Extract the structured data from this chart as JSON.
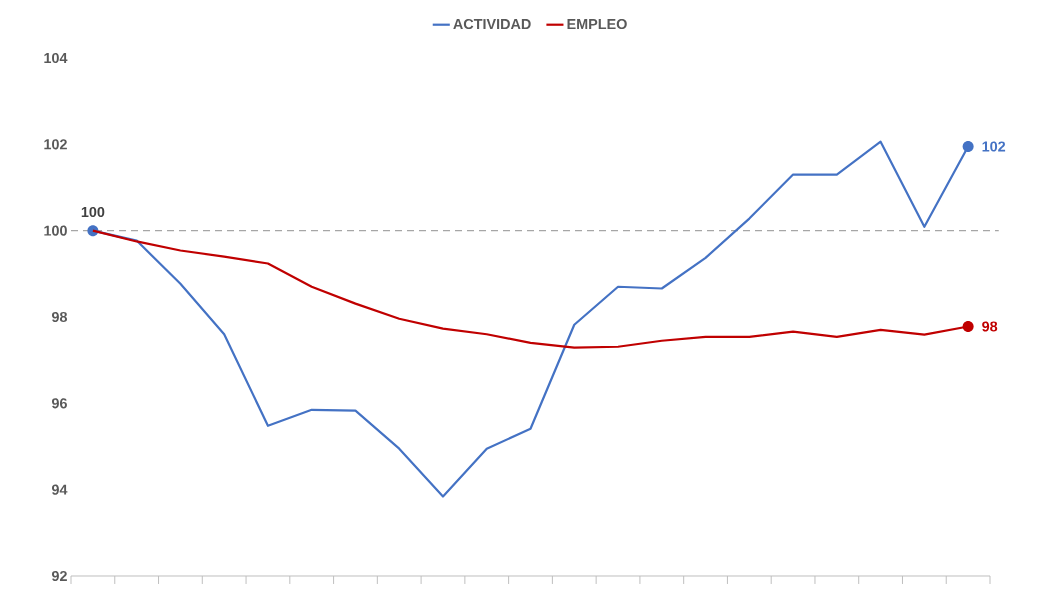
{
  "chart_data": {
    "type": "line",
    "categories": [
      null,
      null,
      null,
      null,
      null,
      null,
      null,
      null,
      null,
      null,
      null,
      null,
      null,
      null,
      null,
      null,
      null,
      null,
      null,
      null,
      null
    ],
    "series": [
      {
        "name": "ACTIVIDAD",
        "color": "#4472c4",
        "values": [
          100,
          99.77,
          98.77,
          97.6,
          95.48,
          95.85,
          95.83,
          94.95,
          93.84,
          94.95,
          95.41,
          97.82,
          98.7,
          98.66,
          99.37,
          100.28,
          101.3,
          101.3,
          102.06,
          100.09,
          101.95
        ],
        "value_labels": [
          "100",
          null,
          null,
          null,
          null,
          null,
          null,
          null,
          null,
          null,
          null,
          null,
          null,
          null,
          null,
          null,
          null,
          null,
          null,
          null,
          "102"
        ]
      },
      {
        "name": "EMPLEO",
        "color": "#c00000",
        "values": [
          100,
          99.75,
          99.54,
          99.4,
          99.24,
          98.7,
          98.31,
          97.96,
          97.73,
          97.6,
          97.4,
          97.29,
          97.31,
          97.45,
          97.54,
          97.54,
          97.66,
          97.54,
          97.7,
          97.59,
          97.78
        ],
        "value_labels": [
          null,
          null,
          null,
          null,
          null,
          null,
          null,
          null,
          null,
          null,
          null,
          null,
          null,
          null,
          null,
          null,
          null,
          null,
          null,
          null,
          "98"
        ]
      }
    ],
    "ylim": [
      92,
      104
    ],
    "yticks": [
      92,
      94,
      96,
      98,
      100,
      102,
      104
    ],
    "ref_lines": [
      {
        "axis": "y",
        "value": 100,
        "color": "#a6a6a6",
        "line_style": "dashed"
      }
    ],
    "legend": "top",
    "marker": "none",
    "line_style": "solid"
  }
}
